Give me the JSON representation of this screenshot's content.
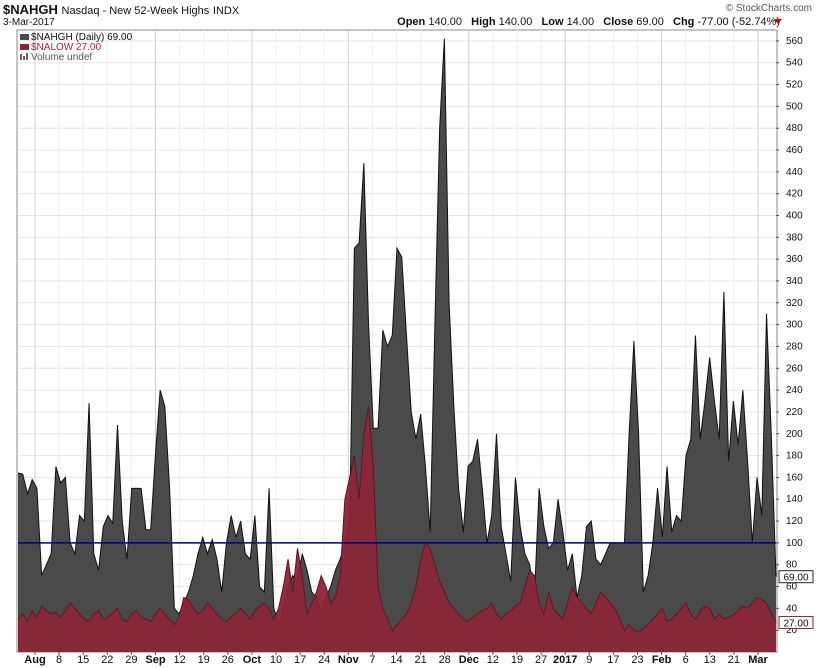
{
  "header": {
    "symbol": "$NAHGH",
    "name": "Nasdaq - New 52-Week Highs",
    "exchange": "INDX",
    "date": "3-Mar-2017",
    "brand": "© StockCharts.com",
    "open_label": "Open",
    "open_value": "140.00",
    "high_label": "High",
    "high_value": "140.00",
    "low_label": "Low",
    "low_value": "14.00",
    "close_label": "Close",
    "close_value": "69.00",
    "chg_label": "Chg",
    "chg_value": "-77.00 (-52.74%)"
  },
  "legend": {
    "main": "$NAHGH (Daily) 69.00",
    "overlay": "$NALOW 27.00",
    "volume": "Volume undef"
  },
  "colors": {
    "highs": "#4a4a4a",
    "lows_behind": "#e8859a",
    "lows_front": "#8b2535",
    "refline": "#000080",
    "accent_down": "#cc0000"
  },
  "chart_data": {
    "type": "area",
    "ylim": [
      0,
      570
    ],
    "yticks": [
      20,
      40,
      60,
      80,
      100,
      120,
      140,
      160,
      180,
      200,
      220,
      240,
      260,
      280,
      300,
      320,
      340,
      360,
      380,
      400,
      420,
      440,
      460,
      480,
      500,
      520,
      540,
      560
    ],
    "reference_line": 100,
    "last_value_labels": [
      "69.00",
      "27.00"
    ],
    "x_tick_labels": [
      {
        "label": "Aug",
        "bold": true
      },
      {
        "label": "8",
        "bold": false
      },
      {
        "label": "15",
        "bold": false
      },
      {
        "label": "22",
        "bold": false
      },
      {
        "label": "29",
        "bold": false
      },
      {
        "label": "Sep",
        "bold": true
      },
      {
        "label": "12",
        "bold": false
      },
      {
        "label": "19",
        "bold": false
      },
      {
        "label": "26",
        "bold": false
      },
      {
        "label": "Oct",
        "bold": true
      },
      {
        "label": "10",
        "bold": false
      },
      {
        "label": "17",
        "bold": false
      },
      {
        "label": "24",
        "bold": false
      },
      {
        "label": "Nov",
        "bold": true
      },
      {
        "label": "7",
        "bold": false
      },
      {
        "label": "14",
        "bold": false
      },
      {
        "label": "21",
        "bold": false
      },
      {
        "label": "28",
        "bold": false
      },
      {
        "label": "Dec",
        "bold": true
      },
      {
        "label": "12",
        "bold": false
      },
      {
        "label": "19",
        "bold": false
      },
      {
        "label": "27",
        "bold": false
      },
      {
        "label": "2017",
        "bold": true
      },
      {
        "label": "9",
        "bold": false
      },
      {
        "label": "17",
        "bold": false
      },
      {
        "label": "23",
        "bold": false
      },
      {
        "label": "Feb",
        "bold": true
      },
      {
        "label": "6",
        "bold": false
      },
      {
        "label": "13",
        "bold": false
      },
      {
        "label": "21",
        "bold": false
      },
      {
        "label": "Mar",
        "bold": true
      }
    ],
    "series": [
      {
        "name": "$NAHGH",
        "values": [
          164,
          163,
          145,
          158,
          150,
          70,
          80,
          90,
          170,
          155,
          160,
          100,
          90,
          125,
          120,
          228,
          90,
          75,
          115,
          125,
          118,
          208,
          120,
          85,
          150,
          150,
          150,
          112,
          112,
          180,
          240,
          225,
          150,
          40,
          35,
          45,
          55,
          70,
          90,
          105,
          90,
          103,
          85,
          55,
          100,
          125,
          105,
          120,
          90,
          85,
          125,
          60,
          55,
          150,
          40,
          25,
          40,
          60,
          70,
          65,
          90,
          75,
          55,
          50,
          35,
          50,
          60,
          75,
          85,
          100,
          120,
          370,
          375,
          448,
          300,
          205,
          205,
          295,
          280,
          290,
          370,
          362,
          290,
          220,
          195,
          218,
          170,
          110,
          300,
          480,
          562,
          320,
          225,
          150,
          110,
          170,
          175,
          195,
          150,
          100,
          125,
          200,
          115,
          90,
          65,
          160,
          115,
          90,
          80,
          50,
          150,
          115,
          95,
          100,
          140,
          110,
          75,
          90,
          50,
          70,
          115,
          120,
          85,
          80,
          90,
          100,
          100,
          100,
          100,
          200,
          285,
          200,
          55,
          70,
          100,
          150,
          105,
          170,
          110,
          125,
          120,
          180,
          195,
          290,
          195,
          230,
          270,
          230,
          195,
          330,
          175,
          230,
          190,
          240,
          175,
          100,
          160,
          125,
          310,
          200,
          69
        ]
      },
      {
        "name": "$NALOW",
        "values": [
          30,
          35,
          28,
          38,
          32,
          42,
          38,
          35,
          36,
          32,
          38,
          45,
          40,
          35,
          30,
          28,
          35,
          38,
          30,
          32,
          36,
          40,
          30,
          28,
          35,
          38,
          32,
          30,
          28,
          35,
          40,
          35,
          30,
          25,
          32,
          50,
          48,
          40,
          35,
          38,
          45,
          40,
          35,
          30,
          28,
          32,
          36,
          40,
          35,
          30,
          38,
          42,
          45,
          40,
          30,
          40,
          60,
          85,
          55,
          95,
          70,
          35,
          45,
          55,
          70,
          60,
          45,
          50,
          70,
          140,
          160,
          180,
          140,
          200,
          225,
          170,
          60,
          40,
          30,
          20,
          25,
          30,
          35,
          45,
          60,
          85,
          100,
          95,
          80,
          65,
          55,
          45,
          40,
          35,
          30,
          28,
          32,
          35,
          38,
          40,
          45,
          35,
          30,
          35,
          38,
          42,
          45,
          60,
          75,
          70,
          45,
          35,
          55,
          40,
          35,
          30,
          45,
          60,
          50,
          45,
          40,
          35,
          45,
          55,
          50,
          45,
          40,
          30,
          20,
          25,
          20,
          18,
          22,
          25,
          30,
          35,
          40,
          28,
          30,
          35,
          40,
          45,
          35,
          30,
          38,
          42,
          40,
          30,
          35,
          30,
          32,
          34,
          38,
          42,
          40,
          45,
          50,
          48,
          45,
          35,
          27
        ]
      }
    ]
  }
}
